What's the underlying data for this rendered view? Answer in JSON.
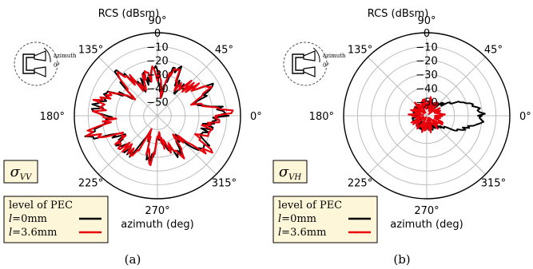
{
  "chart_data": [
    {
      "type": "polar-line",
      "panel_caption": "(a)",
      "radial_label": "RCS (dBsm)",
      "angular_label": "azimuth (deg)",
      "angle_ticks": [
        "90°",
        "45°",
        "0°",
        "315°",
        "270°",
        "225°",
        "180°",
        "135°"
      ],
      "radial_ticks": [
        "0",
        "−10",
        "−20",
        "−30",
        "−40",
        "−50"
      ],
      "rlim": [
        -60,
        0
      ],
      "box_label": "σ",
      "box_subscript": "VV",
      "legend_title": "level of PEC",
      "series": [
        {
          "name": "l=0mm",
          "name_italic": "l",
          "name_rest": "=0mm",
          "color": "#000000"
        },
        {
          "name": "l=3.6mm",
          "name_italic": "l",
          "name_rest": "=3.6mm",
          "color": "#e8000b"
        }
      ],
      "inset": {
        "label": "azimuth",
        "zero": "0°"
      },
      "grid": true
    },
    {
      "type": "polar-line",
      "panel_caption": "(b)",
      "radial_label": "RCS (dBsm)",
      "angular_label": "azimuth (deg)",
      "angle_ticks": [
        "90°",
        "45°",
        "0°",
        "315°",
        "270°",
        "225°",
        "180°",
        "135°"
      ],
      "radial_ticks": [
        "0",
        "−10",
        "−20",
        "−30",
        "−40",
        "−50"
      ],
      "rlim": [
        -60,
        0
      ],
      "box_label": "σ",
      "box_subscript": "VH",
      "legend_title": "level of PEC",
      "series": [
        {
          "name": "l=0mm",
          "name_italic": "l",
          "name_rest": "=0mm",
          "color": "#000000"
        },
        {
          "name": "l=3.6mm",
          "name_italic": "l",
          "name_rest": "=3.6mm",
          "color": "#e8000b"
        }
      ],
      "inset": {
        "label": "azimuth",
        "zero": "0°"
      },
      "grid": true
    }
  ]
}
